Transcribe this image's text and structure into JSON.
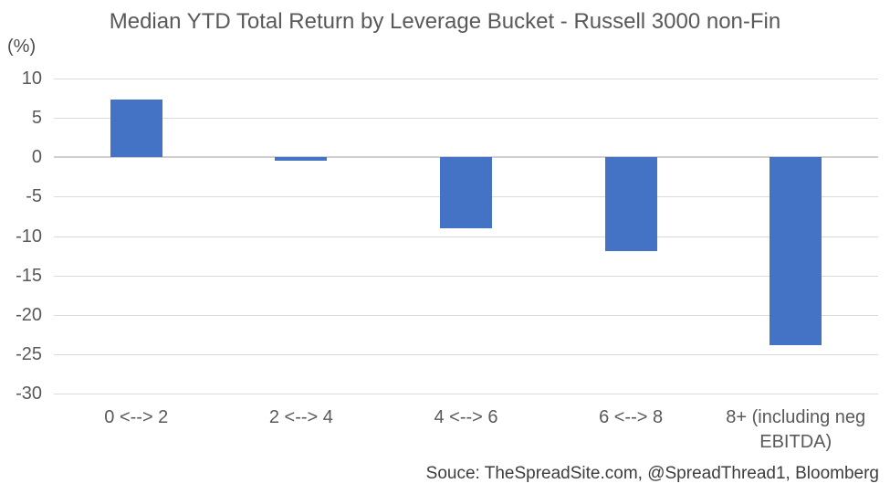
{
  "title": "Median YTD Total Return by Leverage Bucket - Russell 3000 non-Fin",
  "axis_unit_label": "(%)",
  "source": "Souce: TheSpreadSite.com, @SpreadThread1, Bloomberg",
  "colors": {
    "bar": "#4472C4",
    "gridline": "#DBDBDB",
    "zero_line": "#CFCFCF",
    "text": "#595959",
    "source_text": "#3D3D3D",
    "background": "#FFFFFF"
  },
  "chart_data": {
    "type": "bar",
    "title": "Median YTD Total Return by Leverage Bucket - Russell 3000 non-Fin",
    "categories": [
      "0 <--> 2",
      "2 <--> 4",
      "4 <--> 6",
      "6 <--> 8",
      "8+ (including neg EBITDA)"
    ],
    "values": [
      7.3,
      -0.4,
      -9.0,
      -11.9,
      -23.8
    ],
    "xlabel": "",
    "ylabel": "(%)",
    "ylim": [
      -30,
      10
    ],
    "yticks": [
      10,
      5,
      0,
      -5,
      -10,
      -15,
      -20,
      -25,
      -30
    ],
    "grid": true,
    "legend": false,
    "annotation": "Souce: TheSpreadSite.com, @SpreadThread1, Bloomberg"
  }
}
